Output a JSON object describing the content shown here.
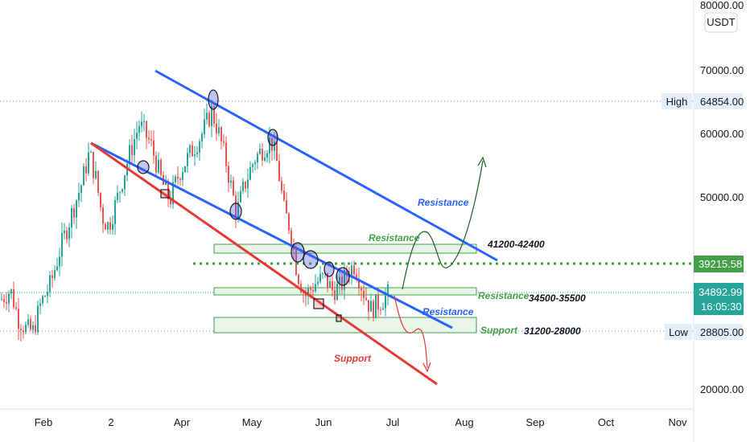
{
  "chart_data": {
    "type": "candlestick",
    "quote_unit": "USDT",
    "x_ticks": [
      "Feb",
      "2",
      "Apr",
      "May",
      "Jun",
      "Jul",
      "Aug",
      "Sep",
      "Oct",
      "Nov"
    ],
    "y_ticks": [
      "80000.00",
      "70000.00",
      "60000.00",
      "50000.00",
      "20000.00"
    ],
    "ylim": [
      18000,
      82000
    ],
    "price_tags": {
      "high_label": "High",
      "high_value": "64854.00",
      "level_value": "39215.58",
      "last_value": "34892.99",
      "countdown": "16:05:30",
      "low_label": "Low",
      "low_value": "28805.00"
    },
    "annotations": {
      "resistance_upper": "Resistance",
      "resistance_zone_top": "Resistance",
      "resistance_zone_mid": "Resistance",
      "resistance_mid_channel": "Resistance",
      "support_zone": "Support",
      "support_lower": "Support",
      "zone_top": "41200-42400",
      "zone_mid": "34500-35500",
      "zone_low": "31200-28000"
    },
    "levels": {
      "high": 64854,
      "dotted_level": 39215.58,
      "last": 34892.99,
      "low": 28805
    },
    "colors": {
      "up": "#26a69a",
      "down": "#ef5350",
      "resistance_line": "#2962ff",
      "support_line": "#e53935",
      "zone_fill": "#e8f5e9",
      "zone_border": "#43a047",
      "dotted_level": "#43a047"
    }
  }
}
